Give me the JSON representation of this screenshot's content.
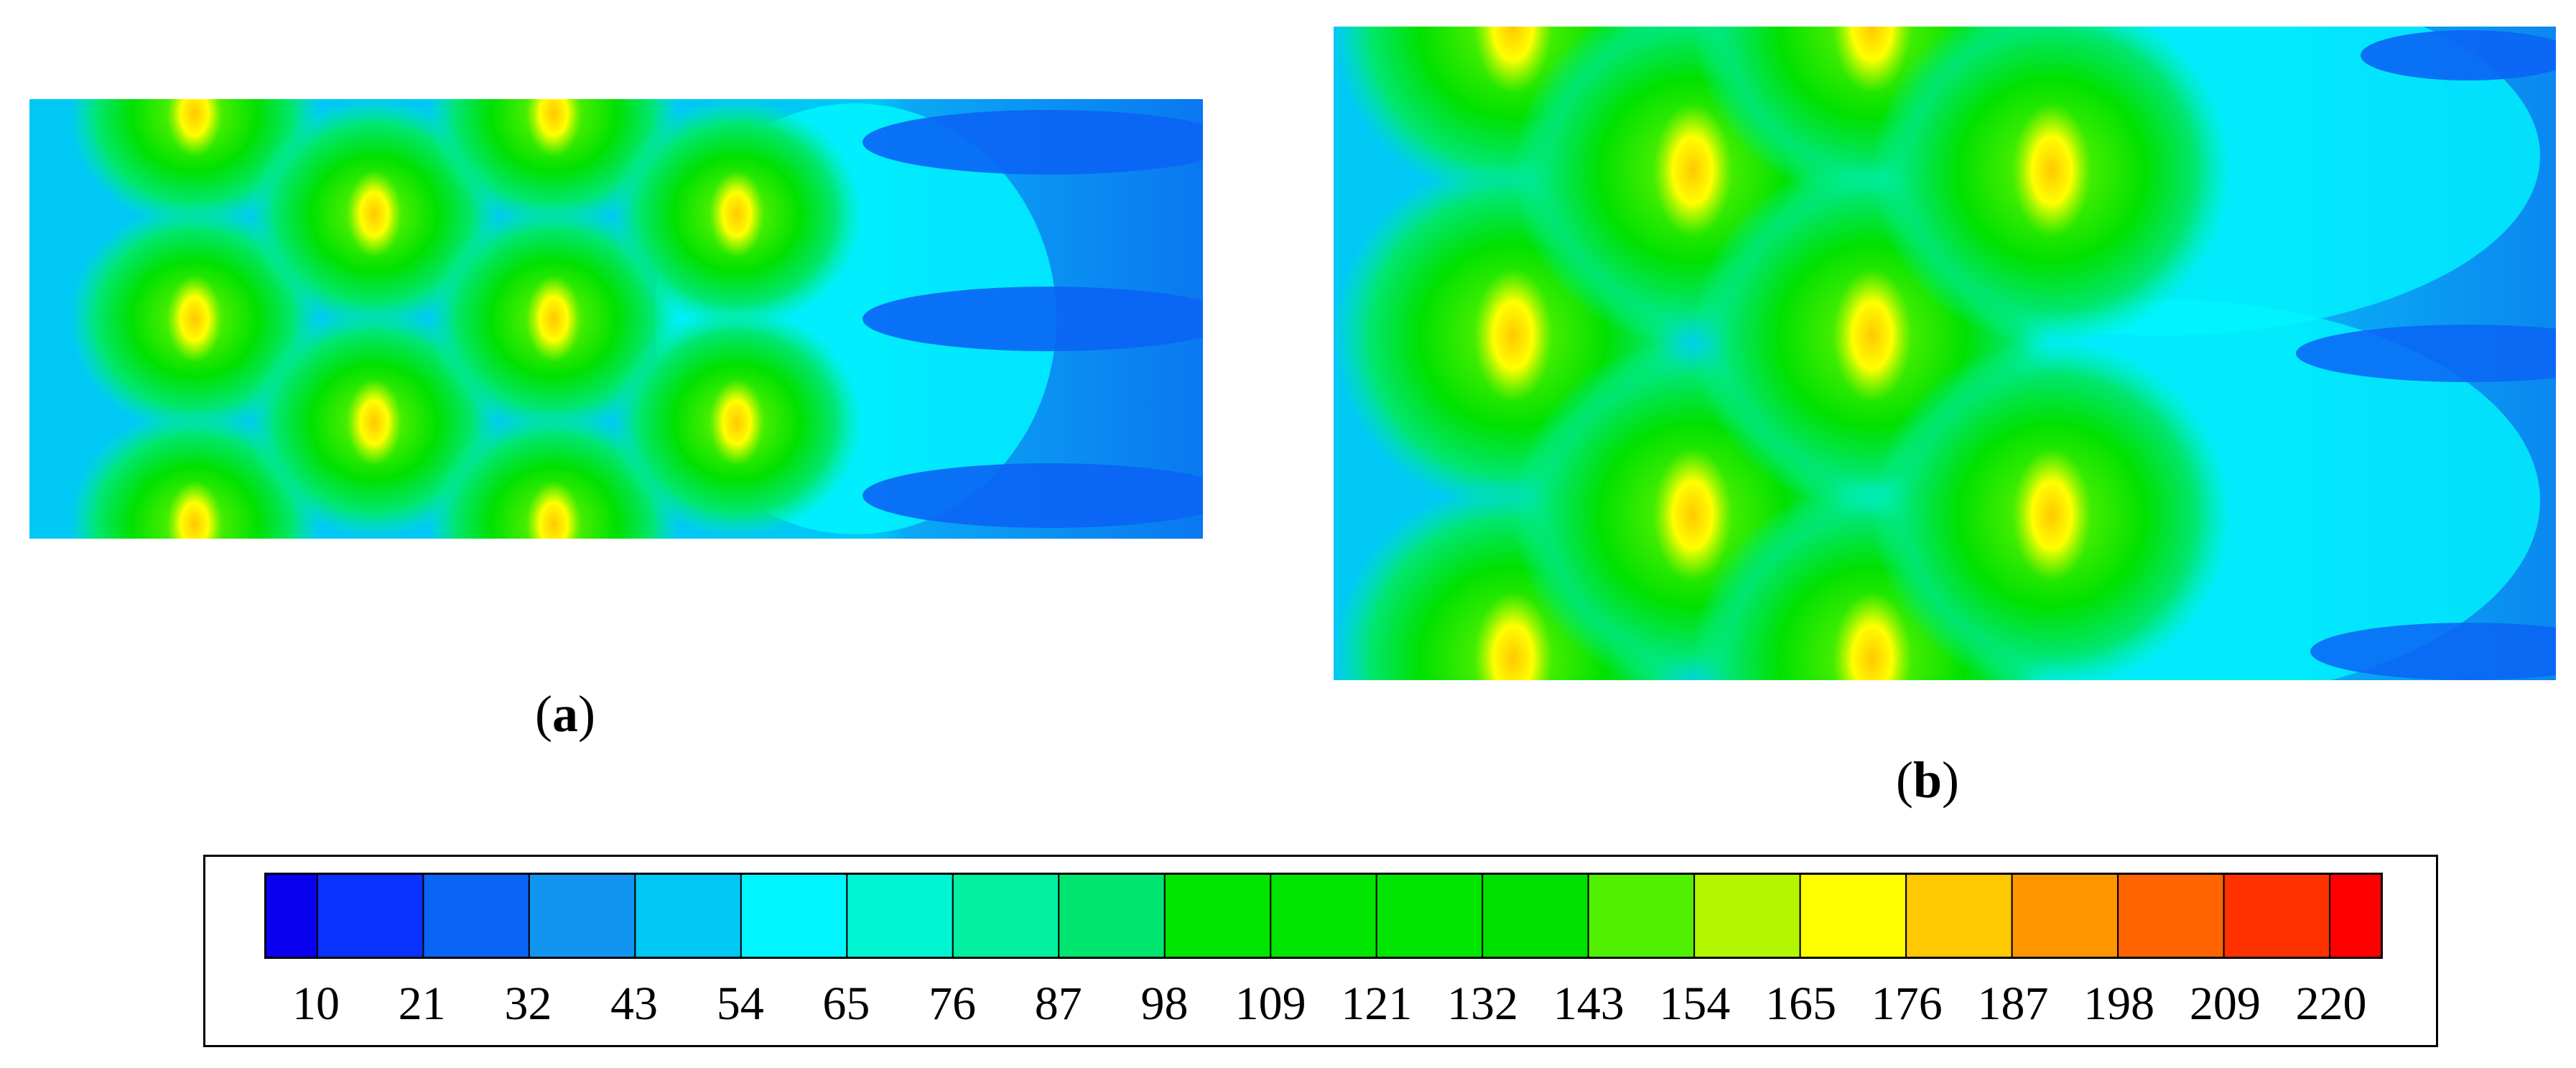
{
  "chart_data": {
    "type": "heatmap",
    "panels": [
      {
        "caption_open": "(",
        "label": "a",
        "caption_close": ")"
      },
      {
        "caption_open": "(",
        "label": "b",
        "caption_close": ")"
      }
    ],
    "colorbar": {
      "tick_labels": [
        "10",
        "21",
        "32",
        "43",
        "54",
        "65",
        "76",
        "87",
        "98",
        "109",
        "121",
        "132",
        "143",
        "154",
        "165",
        "176",
        "187",
        "198",
        "209",
        "220"
      ],
      "levels": [
        10,
        21,
        32,
        43,
        54,
        65,
        76,
        87,
        98,
        109,
        121,
        132,
        143,
        154,
        165,
        176,
        187,
        198,
        209,
        220
      ],
      "colors": [
        "#0a00f0",
        "#0a32ff",
        "#0a64f5",
        "#1096f0",
        "#00c8f5",
        "#00f5ff",
        "#00f5d2",
        "#00f0a0",
        "#00e670",
        "#00e600",
        "#00e600",
        "#00e600",
        "#00e100",
        "#50f000",
        "#b4f500",
        "#ffff00",
        "#ffc800",
        "#ff9600",
        "#ff6400",
        "#ff3200",
        "#ff0000"
      ]
    }
  }
}
